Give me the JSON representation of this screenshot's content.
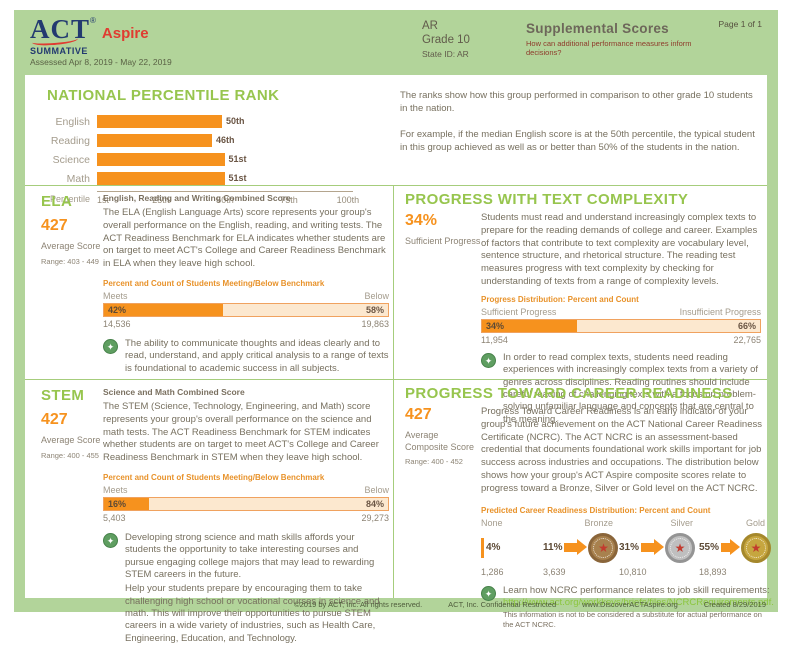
{
  "header": {
    "logo_act": "ACT",
    "logo_reg": "®",
    "logo_aspire": "Aspire",
    "summative": "SUMMATIVE",
    "assessed": "Assessed Apr 8, 2019 - May 22, 2019",
    "state": "AR",
    "grade": "Grade 10",
    "state_id": "State ID: AR",
    "report_title": "Supplemental Scores",
    "report_subtitle": "How can additional performance measures inform decisions?",
    "page_number": "Page 1 of 1"
  },
  "npr": {
    "title": "NATIONAL PERCENTILE RANK",
    "description_p1": "The ranks show how this group performed in comparison to other grade 10 students in the nation.",
    "description_p2": "For example, if the median English score is at the 50th percentile, the typical student in this group achieved as well as or better than 50% of the students in the nation.",
    "axis_label": "Percentile",
    "ticks": {
      "t1": "1st",
      "t2": "25th",
      "t3": "50th",
      "t4": "75th",
      "t5": "100th"
    },
    "rows": [
      {
        "label": "English",
        "value": 50,
        "value_label": "50th"
      },
      {
        "label": "Reading",
        "value": 46,
        "value_label": "46th"
      },
      {
        "label": "Science",
        "value": 51,
        "value_label": "51st"
      },
      {
        "label": "Math",
        "value": 51,
        "value_label": "51st"
      }
    ]
  },
  "ela": {
    "title": "ELA",
    "score": "427",
    "score_label": "Average Score",
    "range": "Range: 403 - 449",
    "subtitle": "English, Reading and Writing Combined Score",
    "body": "The ELA (English Language Arts) score represents your group's overall performance on the English, reading, and writing tests. The ACT Readiness Benchmark for ELA indicates whether students are on target to meet ACT's College and Career Readiness Benchmark in ELA when they leave high school.",
    "bench_header": "Percent and Count of Students Meeting/Below Benchmark",
    "meets_label": "Meets",
    "below_label": "Below",
    "meets_pct": "42%",
    "below_pct": "58%",
    "meets_value": 42,
    "meets_count": "14,536",
    "below_count": "19,863",
    "callout": "The ability to communicate thoughts and ideas clearly and to read, understand, and apply critical analysis to a range of texts is foundational to academic success in all subjects."
  },
  "stem": {
    "title": "STEM",
    "score": "427",
    "score_label": "Average Score",
    "range": "Range: 400 - 455",
    "subtitle": "Science and Math Combined Score",
    "body": "The STEM (Science, Technology, Engineering, and Math) score represents your group's overall performance on the science and math tests. The ACT Readiness Benchmark for STEM indicates whether students are on target to meet ACT's College and Career Readiness Benchmark in STEM when they leave high school.",
    "bench_header": "Percent and Count of Students Meeting/Below Benchmark",
    "meets_label": "Meets",
    "below_label": "Below",
    "meets_pct": "16%",
    "below_pct": "84%",
    "meets_value": 16,
    "meets_count": "5,403",
    "below_count": "29,273",
    "callout_p1": "Developing strong science and math skills affords your students the opportunity to take interesting courses and pursue engaging college majors that may lead to rewarding STEM careers in the future.",
    "callout_p2": "Help your students prepare by encouraging them to take challenging high school or vocational courses in science and math. This will improve their opportunities to pursue STEM careers in a wide variety of industries, such as Health Care, Engineering, Education, and Technology."
  },
  "text_complexity": {
    "title": "PROGRESS WITH TEXT COMPLEXITY",
    "score": "34%",
    "score_label": "Sufficient Progress",
    "body": "Students must read and understand increasingly complex texts to prepare for the reading demands of college and career. Examples of factors that contribute to text complexity are vocabulary level, sentence structure, and rhetorical structure. The reading test measures progress with text complexity by checking for understanding of texts from a range of complexity levels.",
    "bench_header": "Progress Distribution: Percent and Count",
    "meets_label": "Sufficient Progress",
    "below_label": "Insufficient Progress",
    "meets_pct": "34%",
    "below_pct": "66%",
    "meets_value": 34,
    "meets_count": "11,954",
    "below_count": "22,765",
    "callout": "In order to read complex texts, students need reading experiences with increasingly complex texts from a variety of genres across disciplines. Reading routines should include careful reading of challenging texts with a focus on problem-solving unfamiliar language and concepts that are central to the meaning."
  },
  "career": {
    "title": "PROGRESS TOWARD CAREER READINESS",
    "score": "427",
    "score_label": "Average Composite Score",
    "range": "Range: 400 - 452",
    "body": "Progress Toward Career Readiness is an early indicator of your group's future achievement on the ACT National Career Readiness Certificate (NCRC). The ACT NCRC is an assessment-based credential that documents foundational work skills important for job success across industries and occupations. The distribution below shows how your group's ACT Aspire composite scores relate to progress toward a Bronze, Silver or Gold level on the ACT NCRC.",
    "dist_header": "Predicted Career Readiness Distribution: Percent and Count",
    "levels": [
      {
        "label": "None",
        "pct": "4%",
        "count": "1,286"
      },
      {
        "label": "Bronze",
        "pct": "11%",
        "count": "3,639"
      },
      {
        "label": "Silver",
        "pct": "31%",
        "count": "10,810"
      },
      {
        "label": "Gold",
        "pct": "55%",
        "count": "18,893"
      }
    ],
    "callout_line": "Learn how NCRC performance relates to job skill requirements:",
    "callout_link": "http://www.act.org/workkeys/briefs/files/NCRCRequirements.pdf.",
    "callout_note": "This information is not to be considered a substitute for actual performance on the ACT NCRC."
  },
  "footer": {
    "copyright": "©2019 by ACT, Inc. All rights reserved.",
    "confidential": "ACT, Inc. Confidential Restricted",
    "url": "www.DiscoverACTAspire.org",
    "created": "Created 8/29/2019"
  },
  "icons": {
    "callout": "✦",
    "medal_star": "★"
  },
  "colors": {
    "page_green": "#b2d49a",
    "title_green": "#97c54e",
    "accent_orange": "#f6921e",
    "bar_cream": "#fce8cf",
    "link_green": "#8cc63f",
    "navy": "#233a70",
    "logo_red": "#e03c31"
  },
  "chart_data": [
    {
      "type": "bar",
      "orientation": "horizontal",
      "title": "NATIONAL PERCENTILE RANK",
      "categories": [
        "English",
        "Reading",
        "Science",
        "Math"
      ],
      "values": [
        50,
        46,
        51,
        51
      ],
      "value_labels": [
        "50th",
        "46th",
        "51st",
        "51st"
      ],
      "xlabel": "Percentile",
      "tick_labels": [
        "1st",
        "25th",
        "50th",
        "75th",
        "100th"
      ],
      "xlim": [
        1,
        100
      ],
      "bar_color": "#f6921e",
      "grid": false,
      "legend": "none"
    },
    {
      "type": "bar",
      "title": "ELA: Percent and Count of Students Meeting/Below Benchmark",
      "categories": [
        "Meets",
        "Below"
      ],
      "values": [
        42,
        58
      ],
      "counts": [
        14536,
        19863
      ]
    },
    {
      "type": "bar",
      "title": "Progress Distribution: Percent and Count (Text Complexity)",
      "categories": [
        "Sufficient Progress",
        "Insufficient Progress"
      ],
      "values": [
        34,
        66
      ],
      "counts": [
        11954,
        22765
      ]
    },
    {
      "type": "bar",
      "title": "STEM: Percent and Count of Students Meeting/Below Benchmark",
      "categories": [
        "Meets",
        "Below"
      ],
      "values": [
        16,
        84
      ],
      "counts": [
        5403,
        29273
      ]
    },
    {
      "type": "bar",
      "title": "Predicted Career Readiness Distribution: Percent and Count",
      "categories": [
        "None",
        "Bronze",
        "Silver",
        "Gold"
      ],
      "values": [
        4,
        11,
        31,
        55
      ],
      "counts": [
        1286,
        3639,
        10810,
        18893
      ]
    }
  ]
}
